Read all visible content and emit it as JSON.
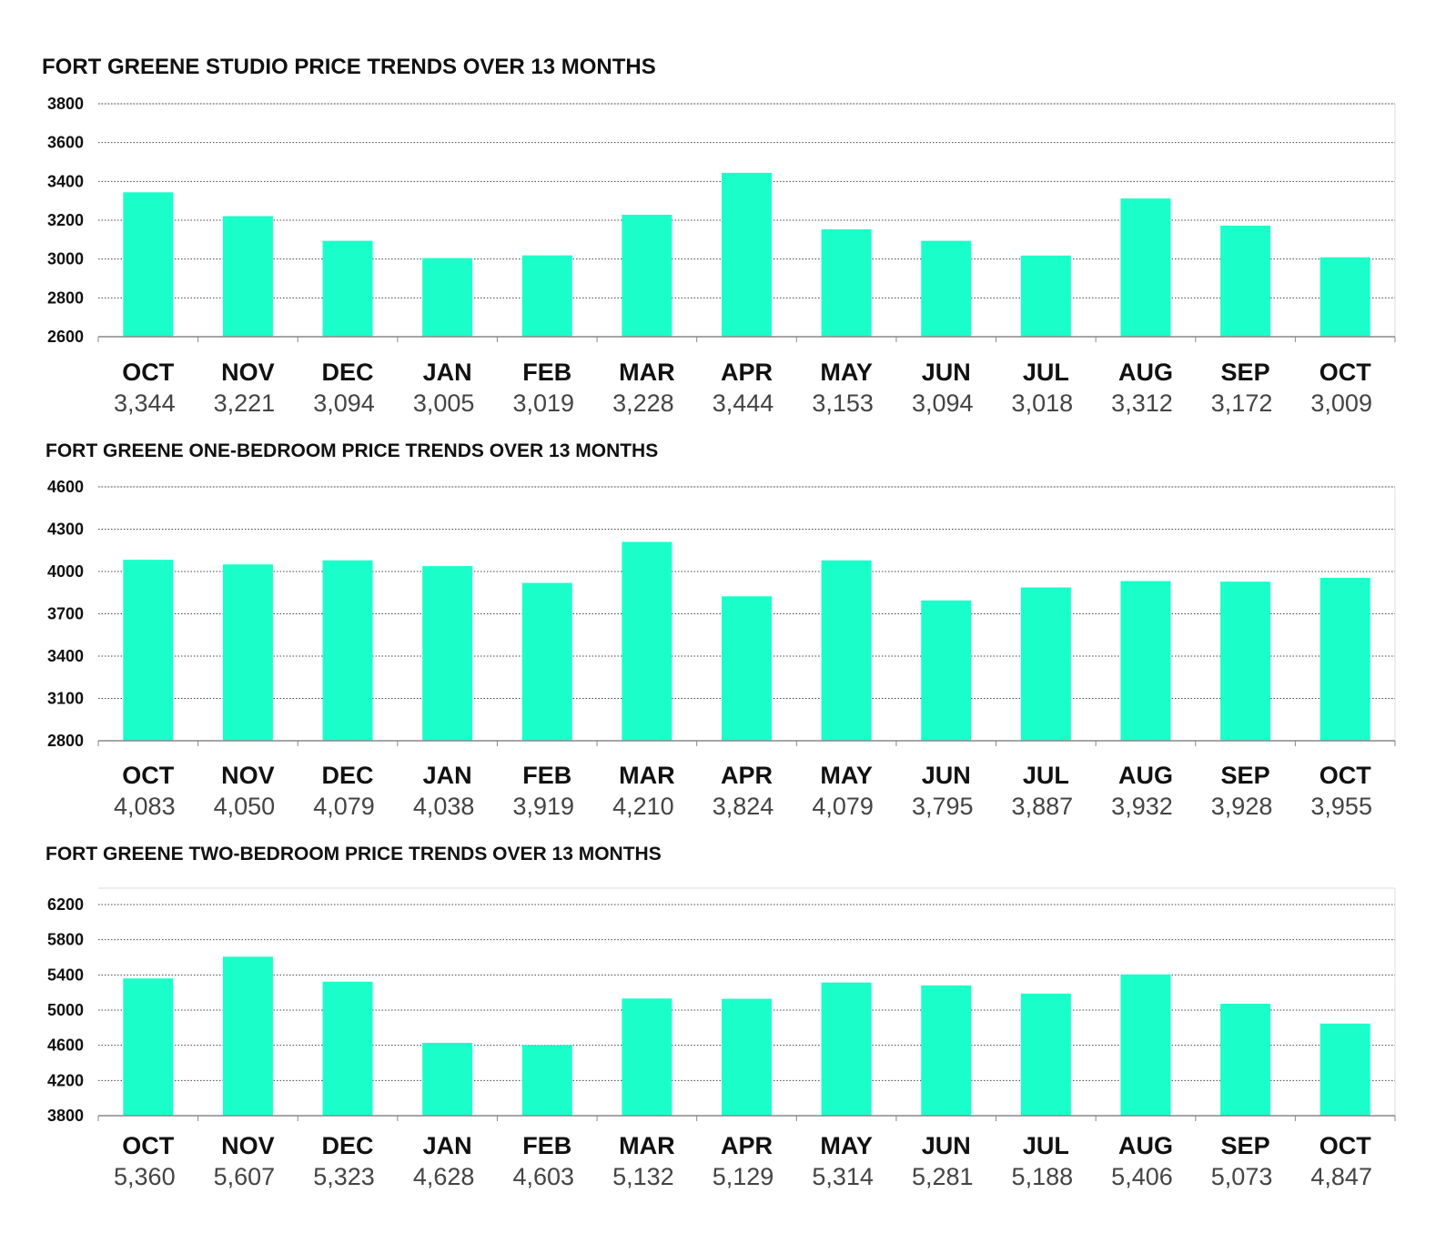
{
  "colors": {
    "bar": "#1affca",
    "grid": "#444444",
    "text": "#111111",
    "value_text": "#444444"
  },
  "chart_data": [
    {
      "type": "bar",
      "title": "FORT GREENE STUDIO PRICE TRENDS OVER 13 MONTHS",
      "categories": [
        "OCT",
        "NOV",
        "DEC",
        "JAN",
        "FEB",
        "MAR",
        "APR",
        "MAY",
        "JUN",
        "JUL",
        "AUG",
        "SEP",
        "OCT"
      ],
      "values": [
        3344,
        3221,
        3094,
        3005,
        3019,
        3228,
        3444,
        3153,
        3094,
        3018,
        3312,
        3172,
        3009
      ],
      "value_labels": [
        "3,344",
        "3,221",
        "3,094",
        "3,005",
        "3,019",
        "3,228",
        "3,444",
        "3,153",
        "3,094",
        "3,018",
        "3,312",
        "3,172",
        "3,009"
      ],
      "ylim": [
        2600,
        3800
      ],
      "yticks": [
        2600,
        2800,
        3000,
        3200,
        3400,
        3600,
        3800
      ],
      "grid": true,
      "xlabel": "",
      "ylabel": ""
    },
    {
      "type": "bar",
      "title": "FORT GREENE ONE-BEDROOM PRICE TRENDS OVER 13 MONTHS",
      "categories": [
        "OCT",
        "NOV",
        "DEC",
        "JAN",
        "FEB",
        "MAR",
        "APR",
        "MAY",
        "JUN",
        "JUL",
        "AUG",
        "SEP",
        "OCT"
      ],
      "values": [
        4083,
        4050,
        4079,
        4038,
        3919,
        4210,
        3824,
        4079,
        3795,
        3887,
        3932,
        3928,
        3955
      ],
      "value_labels": [
        "4,083",
        "4,050",
        "4,079",
        "4,038",
        "3,919",
        "4,210",
        "3,824",
        "4,079",
        "3,795",
        "3,887",
        "3,932",
        "3,928",
        "3,955"
      ],
      "ylim": [
        2800,
        4600
      ],
      "yticks": [
        2800,
        3100,
        3400,
        3700,
        4000,
        4300,
        4600
      ],
      "grid": true,
      "xlabel": "",
      "ylabel": ""
    },
    {
      "type": "bar",
      "title": "FORT GREENE TWO-BEDROOM PRICE TRENDS OVER 13 MONTHS",
      "categories": [
        "OCT",
        "NOV",
        "DEC",
        "JAN",
        "FEB",
        "MAR",
        "APR",
        "MAY",
        "JUN",
        "JUL",
        "AUG",
        "SEP",
        "OCT"
      ],
      "values": [
        5360,
        5607,
        5323,
        4628,
        4603,
        5132,
        5129,
        5314,
        5281,
        5188,
        5406,
        5073,
        4847
      ],
      "value_labels": [
        "5,360",
        "5,607",
        "5,323",
        "4,628",
        "4,603",
        "5,132",
        "5,129",
        "5,314",
        "5,281",
        "5,188",
        "5,406",
        "5,073",
        "4,847"
      ],
      "ylim": [
        3800,
        6400
      ],
      "yticks": [
        3800,
        4200,
        4600,
        5000,
        5400,
        5800,
        6200
      ],
      "grid": true,
      "xlabel": "",
      "ylabel": ""
    }
  ]
}
